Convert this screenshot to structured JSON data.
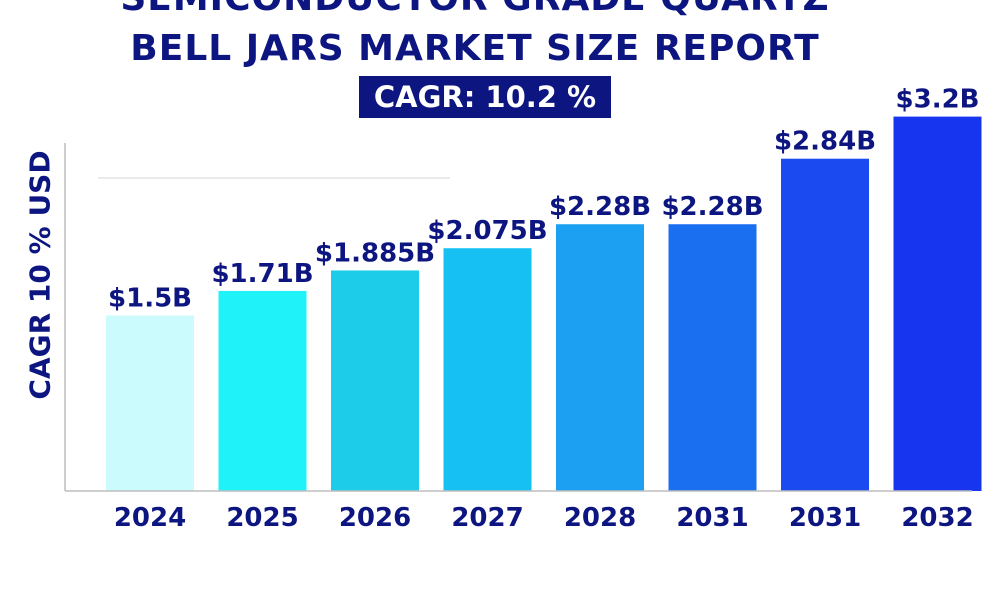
{
  "chart_data": {
    "type": "bar",
    "title_lines": [
      "SEMICONDUCTOR GRADE QUARTZ",
      "BELL JARS MARKET SIZE REPORT"
    ],
    "subtitle": "CAGR: 10.2 %",
    "ylabel": "CAGR 10 % USD",
    "xlabel": "",
    "categories": [
      "2024",
      "2025",
      "2026",
      "2027",
      "2028",
      "2031",
      "2031",
      "2032"
    ],
    "values": [
      1.5,
      1.71,
      1.885,
      2.075,
      2.28,
      2.28,
      2.84,
      3.2
    ],
    "data_labels": [
      "$1.5B",
      "$1.71B",
      "$1.885B",
      "$2.075B",
      "$2.28B",
      "$2.28B",
      "$2.84B",
      "$3.2B"
    ],
    "colors": [
      "#ccfbfd",
      "#1ff2f9",
      "#1ccce8",
      "#17c0f2",
      "#1ca0f2",
      "#1a6ef0",
      "#1b4af0",
      "#1735ee"
    ],
    "grid": false,
    "legend": "none"
  }
}
